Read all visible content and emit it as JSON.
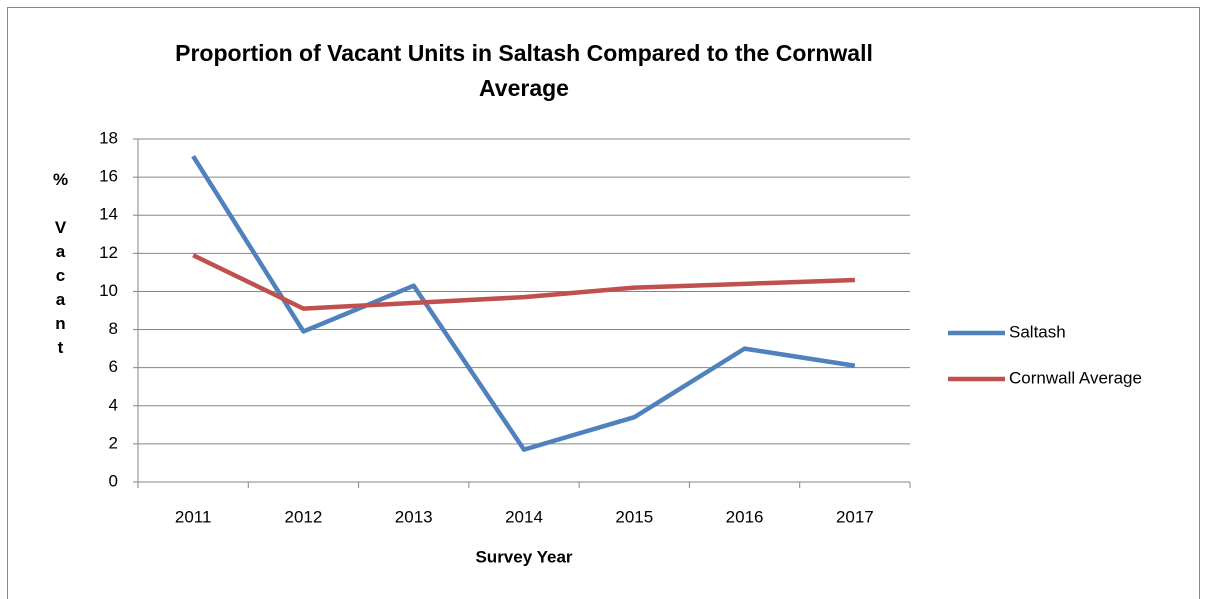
{
  "chart_data": {
    "type": "line",
    "title": "Proportion of Vacant Units in Saltash Compared to the Cornwall Average",
    "x_label": "Survey Year",
    "y_label": "% Vacant",
    "categories": [
      "2011",
      "2012",
      "2013",
      "2014",
      "2015",
      "2016",
      "2017"
    ],
    "series": [
      {
        "name": "Saltash",
        "color": "#4f81bd",
        "values": [
          17.1,
          7.9,
          10.3,
          1.7,
          3.4,
          7.0,
          6.1
        ]
      },
      {
        "name": "Cornwall Average",
        "color": "#c0504d",
        "values": [
          11.9,
          9.1,
          9.4,
          9.7,
          10.2,
          10.4,
          10.6
        ]
      }
    ],
    "ylim": [
      0,
      18
    ],
    "yticks": [
      0,
      2,
      4,
      6,
      8,
      10,
      12,
      14,
      16,
      18
    ],
    "grid": true,
    "legend": "right"
  }
}
